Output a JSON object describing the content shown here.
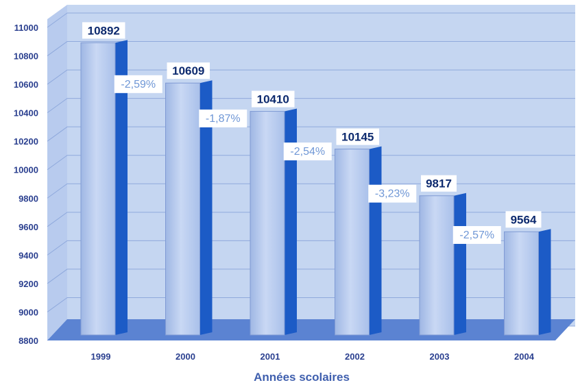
{
  "chart_data": {
    "type": "bar",
    "title": "",
    "xlabel": "Années scolaires",
    "ylabel": "",
    "ylim": [
      8800,
      11000
    ],
    "yticks": [
      8800,
      9000,
      9200,
      9400,
      9600,
      9800,
      10000,
      10200,
      10400,
      10600,
      10800,
      11000
    ],
    "categories": [
      "1999",
      "2000",
      "2001",
      "2002",
      "2003",
      "2004"
    ],
    "values": [
      10892,
      10609,
      10410,
      10145,
      9817,
      9564
    ],
    "value_labels": [
      "10892",
      "10609",
      "10410",
      "10145",
      "9817",
      "9564"
    ],
    "changes": [
      "-2,59%",
      "-1,87%",
      "-2,54%",
      "-3,23%",
      "-2,57%"
    ],
    "grid": true,
    "colors": {
      "background": "#c5d6f1",
      "floor": "#5b83d2",
      "bar_front": "#b4c9ee",
      "bar_side": "#1c5bc6",
      "tick_text": "#2a3f8f",
      "change_text": "#6f97d6"
    }
  }
}
